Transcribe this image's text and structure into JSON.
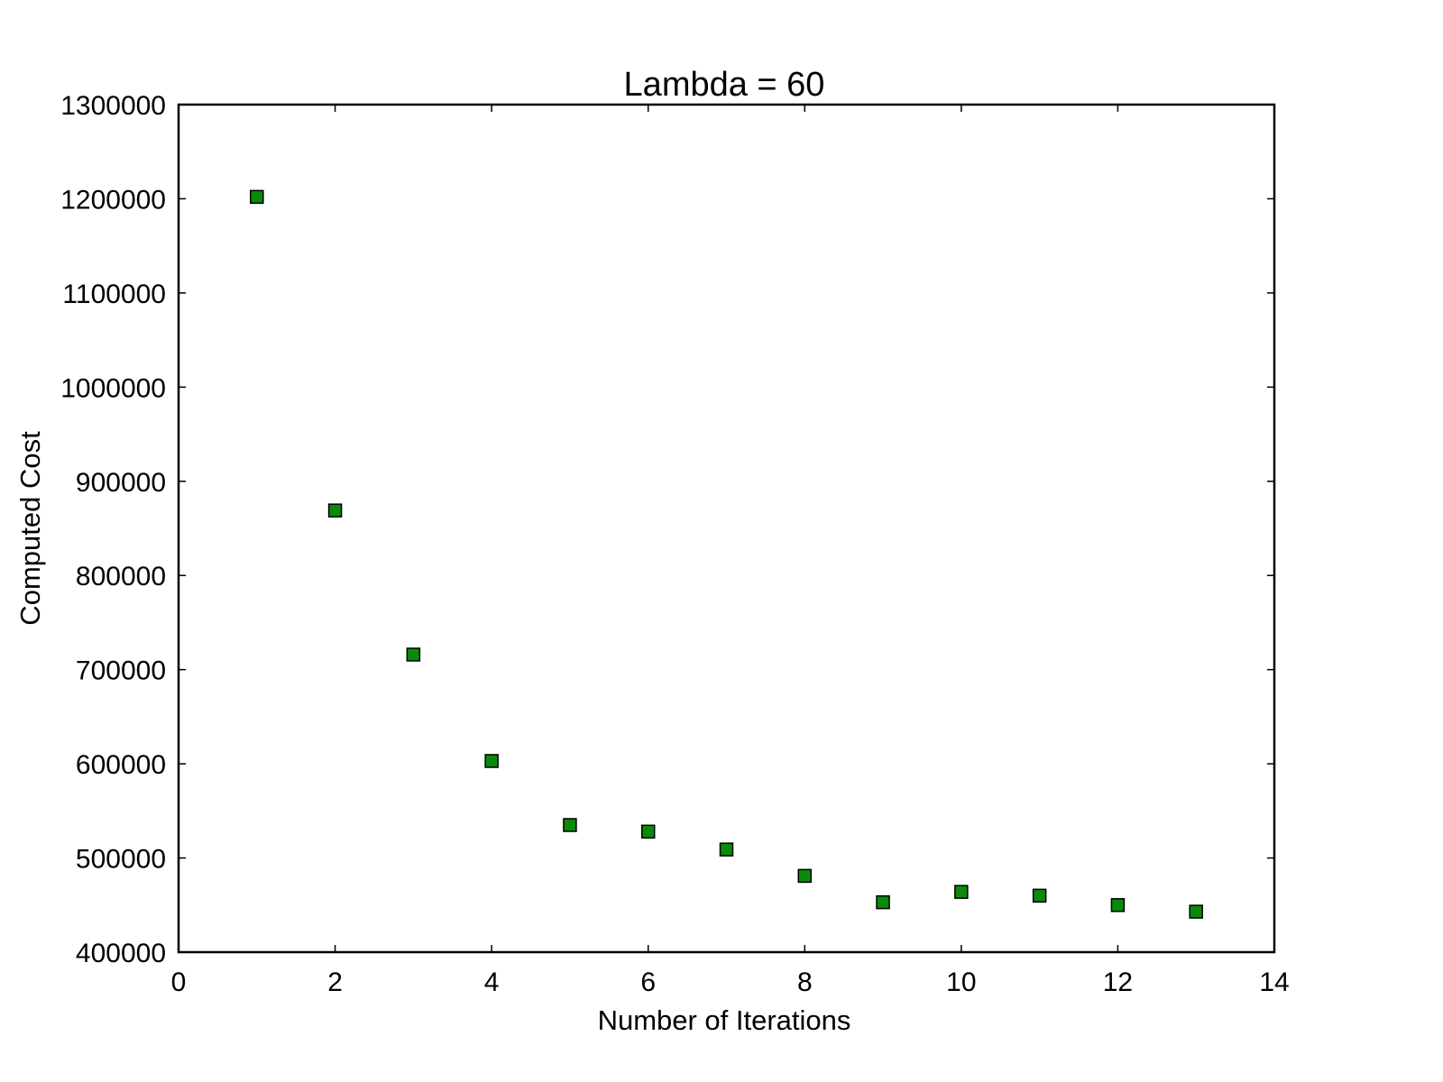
{
  "chart_data": {
    "type": "scatter",
    "title": "Lambda = 60",
    "xlabel": "Number of Iterations",
    "ylabel": "Computed Cost",
    "xlim": [
      0,
      14
    ],
    "ylim": [
      400000,
      1300000
    ],
    "xticks": [
      0,
      2,
      4,
      6,
      8,
      10,
      12,
      14
    ],
    "yticks": [
      400000,
      500000,
      600000,
      700000,
      800000,
      900000,
      1000000,
      1100000,
      1200000,
      1300000
    ],
    "grid": false,
    "marker": "square",
    "marker_color": "#0a8a0a",
    "series": [
      {
        "x": [
          1,
          2,
          3,
          4,
          5,
          6,
          7,
          8,
          9,
          10,
          11,
          12,
          13
        ],
        "y": [
          1202000,
          869000,
          716000,
          603000,
          535000,
          528000,
          509000,
          481000,
          453000,
          464000,
          460000,
          450000,
          443000
        ]
      }
    ]
  }
}
